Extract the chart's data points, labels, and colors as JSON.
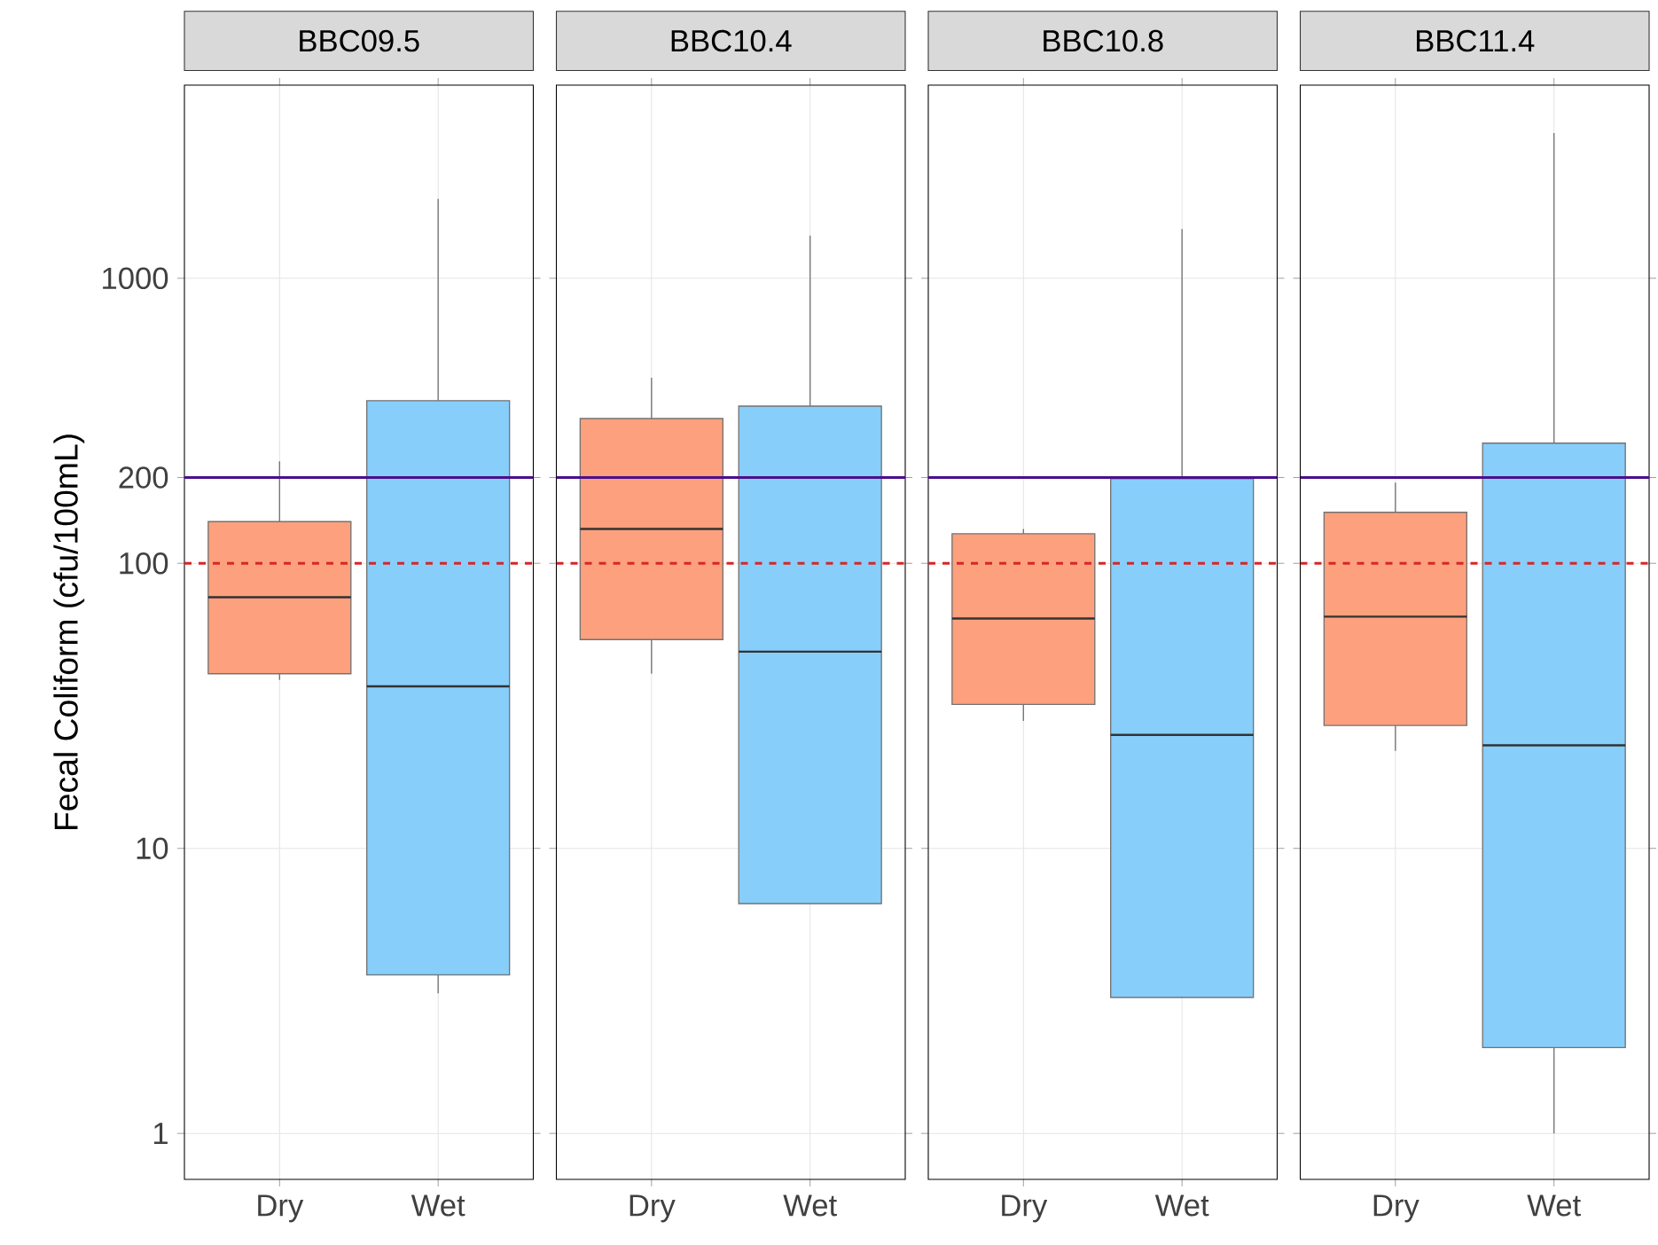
{
  "chart_data": [
    {
      "type": "box",
      "title": "BBC09.5",
      "ylabel": "Fecal Coliform (cfu/100mL)",
      "categories": [
        "Dry",
        "Wet"
      ],
      "colors": [
        "#fca07e",
        "#87cefa"
      ],
      "boxes": [
        {
          "low": 39,
          "q1": 41,
          "median": 76,
          "q3": 140,
          "high": 228
        },
        {
          "low": 3.1,
          "q1": 3.6,
          "median": 37,
          "q3": 372,
          "high": 1900
        }
      ],
      "log": "y",
      "ylim": [
        0.69,
        4760
      ],
      "yticks": [
        1,
        10,
        100,
        200,
        1000
      ],
      "grid": true,
      "ref_lines": [
        {
          "axis": "y",
          "value": 200,
          "color": "#4b0f8c",
          "line_style": "solid"
        },
        {
          "axis": "y",
          "value": 100,
          "color": "#d62728",
          "line_style": "dashed"
        }
      ]
    },
    {
      "type": "box",
      "title": "BBC10.4",
      "categories": [
        "Dry",
        "Wet"
      ],
      "colors": [
        "#fca07e",
        "#87cefa"
      ],
      "boxes": [
        {
          "low": 41,
          "q1": 54,
          "median": 132,
          "q3": 322,
          "high": 448
        },
        {
          "low": 6.4,
          "q1": 6.4,
          "median": 49,
          "q3": 356,
          "high": 1410
        }
      ],
      "log": "y",
      "ylim": [
        0.69,
        4760
      ],
      "yticks": [
        1,
        10,
        100,
        200,
        1000
      ],
      "grid": true,
      "tick_labels": "x",
      "ref_lines": [
        {
          "axis": "y",
          "value": 200,
          "color": "#4b0f8c",
          "line_style": "solid"
        },
        {
          "axis": "y",
          "value": 100,
          "color": "#d62728",
          "line_style": "dashed"
        }
      ]
    },
    {
      "type": "box",
      "title": "BBC10.8",
      "categories": [
        "Dry",
        "Wet"
      ],
      "colors": [
        "#fca07e",
        "#87cefa"
      ],
      "boxes": [
        {
          "low": 28,
          "q1": 32,
          "median": 64,
          "q3": 127,
          "high": 132
        },
        {
          "low": 3.0,
          "q1": 3.0,
          "median": 25,
          "q3": 198,
          "high": 1490
        }
      ],
      "log": "y",
      "ylim": [
        0.69,
        4760
      ],
      "yticks": [
        1,
        10,
        100,
        200,
        1000
      ],
      "grid": true,
      "tick_labels": "x",
      "ref_lines": [
        {
          "axis": "y",
          "value": 200,
          "color": "#4b0f8c",
          "line_style": "solid"
        },
        {
          "axis": "y",
          "value": 100,
          "color": "#d62728",
          "line_style": "dashed"
        }
      ]
    },
    {
      "type": "box",
      "title": "BBC11.4",
      "categories": [
        "Dry",
        "Wet"
      ],
      "colors": [
        "#fca07e",
        "#87cefa"
      ],
      "boxes": [
        {
          "low": 22,
          "q1": 27,
          "median": 65,
          "q3": 151,
          "high": 192
        },
        {
          "low": 1.0,
          "q1": 2.0,
          "median": 23,
          "q3": 264,
          "high": 3235
        }
      ],
      "log": "y",
      "ylim": [
        0.69,
        4760
      ],
      "yticks": [
        1,
        10,
        100,
        200,
        1000
      ],
      "grid": true,
      "tick_labels": "x",
      "ref_lines": [
        {
          "axis": "y",
          "value": 200,
          "color": "#4b0f8c",
          "line_style": "solid"
        },
        {
          "axis": "y",
          "value": 100,
          "color": "#d62728",
          "line_style": "dashed"
        }
      ]
    }
  ]
}
